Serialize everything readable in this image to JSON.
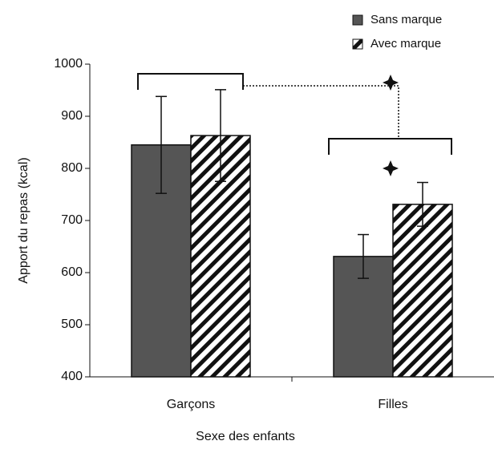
{
  "chart_data": {
    "type": "bar",
    "categories": [
      "Garçons",
      "Filles"
    ],
    "x_label": "Sexe des enfants",
    "y_label": "Apport du repas (kcal)",
    "series": [
      {
        "name": "Sans marque",
        "color": "#555555",
        "values": [
          845,
          631
        ],
        "errors": [
          93,
          42
        ]
      },
      {
        "name": "Avec marque",
        "color": "hatch",
        "values": [
          863,
          731
        ],
        "errors": [
          88,
          42
        ]
      }
    ],
    "ylim": [
      400,
      1000
    ],
    "yticks": [
      400,
      500,
      600,
      700,
      800,
      900,
      1000
    ]
  }
}
